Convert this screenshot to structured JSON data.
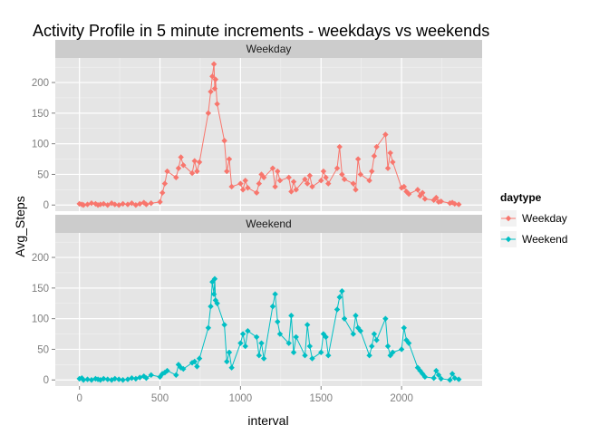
{
  "chart_data": {
    "type": "line",
    "title": "Activity Profile in 5 minute increments - weekdays vs weekends",
    "xlabel": "interval",
    "ylabel": "Avg_Steps",
    "xlim": [
      -150,
      2500
    ],
    "ylim": [
      -10,
      240
    ],
    "x_ticks": [
      0,
      500,
      1000,
      1500,
      2000
    ],
    "x_tick_labels": [
      "0",
      "500",
      "1000",
      "1500",
      "2000"
    ],
    "y_ticks": [
      0,
      50,
      100,
      150,
      200
    ],
    "y_tick_labels": [
      "0",
      "50",
      "100",
      "150",
      "200"
    ],
    "grid": true,
    "legend": {
      "title": "daytype",
      "placement": "right",
      "entries": [
        "Weekday",
        "Weekend"
      ]
    },
    "facets": [
      "Weekday",
      "Weekend"
    ],
    "series": [
      {
        "name": "Weekday",
        "facet": "Weekday",
        "color": "#F8766D",
        "x": [
          0,
          15,
          25,
          50,
          75,
          100,
          115,
          130,
          150,
          175,
          200,
          220,
          245,
          270,
          300,
          325,
          350,
          375,
          400,
          415,
          445,
          500,
          515,
          530,
          545,
          600,
          615,
          630,
          645,
          700,
          715,
          730,
          745,
          800,
          815,
          825,
          835,
          840,
          845,
          855,
          900,
          915,
          930,
          945,
          1000,
          1015,
          1030,
          1045,
          1100,
          1115,
          1130,
          1145,
          1200,
          1215,
          1230,
          1245,
          1300,
          1315,
          1330,
          1345,
          1400,
          1415,
          1430,
          1445,
          1500,
          1515,
          1530,
          1545,
          1600,
          1615,
          1630,
          1645,
          1700,
          1715,
          1730,
          1745,
          1800,
          1815,
          1830,
          1845,
          1900,
          1915,
          1930,
          1945,
          2000,
          2015,
          2030,
          2045,
          2100,
          2115,
          2130,
          2145,
          2200,
          2215,
          2230,
          2245,
          2300,
          2315,
          2330,
          2355
        ],
        "values": [
          2,
          1,
          0,
          1,
          3,
          2,
          0,
          1,
          2,
          0,
          3,
          1,
          0,
          2,
          1,
          3,
          0,
          2,
          4,
          1,
          3,
          5,
          20,
          35,
          55,
          45,
          60,
          78,
          65,
          52,
          72,
          55,
          70,
          150,
          185,
          210,
          230,
          190,
          205,
          165,
          105,
          55,
          75,
          30,
          35,
          25,
          40,
          28,
          20,
          35,
          50,
          45,
          60,
          30,
          55,
          40,
          45,
          22,
          38,
          25,
          42,
          35,
          48,
          30,
          40,
          55,
          45,
          35,
          60,
          95,
          50,
          42,
          35,
          25,
          75,
          50,
          40,
          55,
          80,
          95,
          115,
          60,
          85,
          70,
          28,
          30,
          22,
          18,
          25,
          15,
          20,
          10,
          8,
          12,
          5,
          6,
          3,
          4,
          2,
          1
        ]
      },
      {
        "name": "Weekend",
        "facet": "Weekend",
        "color": "#00BFC4",
        "x": [
          0,
          15,
          25,
          50,
          75,
          100,
          115,
          130,
          150,
          175,
          200,
          220,
          245,
          270,
          300,
          325,
          350,
          375,
          400,
          415,
          445,
          500,
          515,
          530,
          545,
          600,
          615,
          630,
          645,
          700,
          715,
          730,
          745,
          800,
          815,
          825,
          835,
          840,
          845,
          855,
          900,
          915,
          930,
          945,
          1000,
          1015,
          1030,
          1045,
          1100,
          1115,
          1130,
          1145,
          1200,
          1215,
          1230,
          1245,
          1300,
          1315,
          1330,
          1345,
          1400,
          1415,
          1430,
          1445,
          1500,
          1515,
          1530,
          1545,
          1600,
          1615,
          1630,
          1645,
          1700,
          1715,
          1730,
          1745,
          1800,
          1815,
          1830,
          1845,
          1900,
          1915,
          1930,
          1945,
          2000,
          2015,
          2030,
          2045,
          2100,
          2115,
          2130,
          2145,
          2200,
          2215,
          2230,
          2245,
          2300,
          2315,
          2330,
          2355
        ],
        "values": [
          2,
          3,
          0,
          1,
          0,
          2,
          1,
          0,
          2,
          1,
          0,
          2,
          1,
          0,
          1,
          3,
          2,
          4,
          6,
          3,
          8,
          5,
          10,
          12,
          15,
          8,
          25,
          20,
          18,
          28,
          30,
          22,
          35,
          85,
          120,
          160,
          140,
          165,
          130,
          125,
          90,
          30,
          45,
          20,
          60,
          75,
          55,
          80,
          70,
          40,
          60,
          35,
          120,
          140,
          95,
          75,
          60,
          105,
          45,
          70,
          40,
          90,
          55,
          35,
          45,
          75,
          70,
          40,
          115,
          135,
          145,
          100,
          75,
          105,
          85,
          80,
          40,
          55,
          75,
          65,
          100,
          55,
          40,
          45,
          50,
          85,
          65,
          60,
          20,
          15,
          10,
          5,
          3,
          15,
          8,
          2,
          0,
          10,
          3,
          1
        ]
      }
    ]
  }
}
